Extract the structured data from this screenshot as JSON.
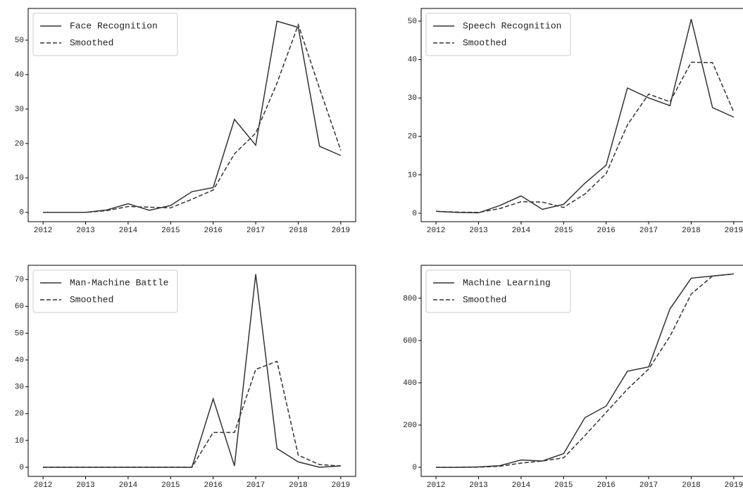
{
  "chart_data": [
    {
      "type": "line",
      "x": [
        2012,
        2012.5,
        2013,
        2013.5,
        2014,
        2014.5,
        2015,
        2015.5,
        2016,
        2016.5,
        2017,
        2017.5,
        2018,
        2018.5,
        2019
      ],
      "series": [
        {
          "name": "Face Recognition",
          "color": "#333333",
          "linestyle": "solid",
          "values": [
            0,
            0,
            0,
            0.7,
            2.5,
            0.6,
            2,
            6,
            7.2,
            27,
            19.5,
            55.5,
            53.7,
            19.2,
            16.5
          ]
        },
        {
          "name": "Smoothed",
          "color": "#333333",
          "linestyle": "dashed",
          "values": [
            0,
            0,
            0,
            0.5,
            1.7,
            1.5,
            1.3,
            3.8,
            6.5,
            17,
            23,
            37.5,
            54.5,
            36,
            18
          ]
        }
      ],
      "xlim": [
        2011.65,
        2019.35
      ],
      "xticks": [
        2012,
        2013,
        2014,
        2015,
        2016,
        2017,
        2018,
        2019
      ],
      "ylim": [
        -2.7,
        59.2
      ],
      "yticks": [
        0,
        10,
        20,
        30,
        40,
        50
      ],
      "legend": "upper left"
    },
    {
      "type": "line",
      "x": [
        2012,
        2012.5,
        2013,
        2013.5,
        2014,
        2014.5,
        2015,
        2015.5,
        2016,
        2016.5,
        2017,
        2017.5,
        2018,
        2018.5,
        2019
      ],
      "series": [
        {
          "name": "Speech Recognition",
          "color": "#333333",
          "linestyle": "solid",
          "values": [
            0.5,
            0.2,
            0.1,
            2,
            4.5,
            1,
            2.3,
            7.8,
            12.5,
            32.6,
            30,
            28,
            50.5,
            27.5,
            25
          ]
        },
        {
          "name": "Smoothed",
          "color": "#333333",
          "linestyle": "dashed",
          "values": [
            0.5,
            0.3,
            0.2,
            1.2,
            3,
            2.9,
            1.5,
            5,
            10.3,
            23,
            31,
            29,
            39.3,
            39.2,
            26.3
          ]
        }
      ],
      "xlim": [
        2011.65,
        2019.35
      ],
      "xticks": [
        2012,
        2013,
        2014,
        2015,
        2016,
        2017,
        2018,
        2019
      ],
      "ylim": [
        -2.2,
        53.3
      ],
      "yticks": [
        0,
        10,
        20,
        30,
        40,
        50
      ],
      "legend": "upper left"
    },
    {
      "type": "line",
      "x": [
        2012,
        2012.5,
        2013,
        2013.5,
        2014,
        2014.5,
        2015,
        2015.5,
        2016,
        2016.5,
        2017,
        2017.5,
        2018,
        2018.5,
        2019
      ],
      "series": [
        {
          "name": "Man-Machine Battle",
          "color": "#333333",
          "linestyle": "solid",
          "values": [
            0,
            0,
            0,
            0,
            0,
            0,
            0,
            0,
            25.5,
            0.5,
            72,
            7,
            2,
            0,
            0.5
          ]
        },
        {
          "name": "Smoothed",
          "color": "#333333",
          "linestyle": "dashed",
          "values": [
            0,
            0,
            0,
            0,
            0,
            0,
            0,
            0,
            13,
            13,
            36.5,
            39.5,
            4.5,
            1,
            0.5
          ]
        }
      ],
      "xlim": [
        2011.65,
        2019.35
      ],
      "xticks": [
        2012,
        2013,
        2014,
        2015,
        2016,
        2017,
        2018,
        2019
      ],
      "ylim": [
        -3.4,
        75.3
      ],
      "yticks": [
        0,
        10,
        20,
        30,
        40,
        50,
        60,
        70
      ],
      "legend": "upper left"
    },
    {
      "type": "line",
      "x": [
        2012,
        2012.5,
        2013,
        2013.5,
        2014,
        2014.5,
        2015,
        2015.5,
        2016,
        2016.5,
        2017,
        2017.5,
        2018,
        2018.5,
        2019
      ],
      "series": [
        {
          "name": "Machine Learning",
          "color": "#333333",
          "linestyle": "solid",
          "values": [
            0,
            0,
            2,
            8,
            35,
            30,
            65,
            235,
            290,
            455,
            475,
            750,
            895,
            905,
            915
          ]
        },
        {
          "name": "Smoothed",
          "color": "#333333",
          "linestyle": "dashed",
          "values": [
            0,
            0,
            1,
            5,
            20,
            30,
            45,
            150,
            260,
            370,
            465,
            620,
            820,
            905,
            915
          ]
        }
      ],
      "xlim": [
        2011.65,
        2019.35
      ],
      "xticks": [
        2012,
        2013,
        2014,
        2015,
        2016,
        2017,
        2018,
        2019
      ],
      "ylim": [
        -43,
        956
      ],
      "yticks": [
        0,
        200,
        400,
        600,
        800
      ],
      "legend": "upper left"
    }
  ]
}
